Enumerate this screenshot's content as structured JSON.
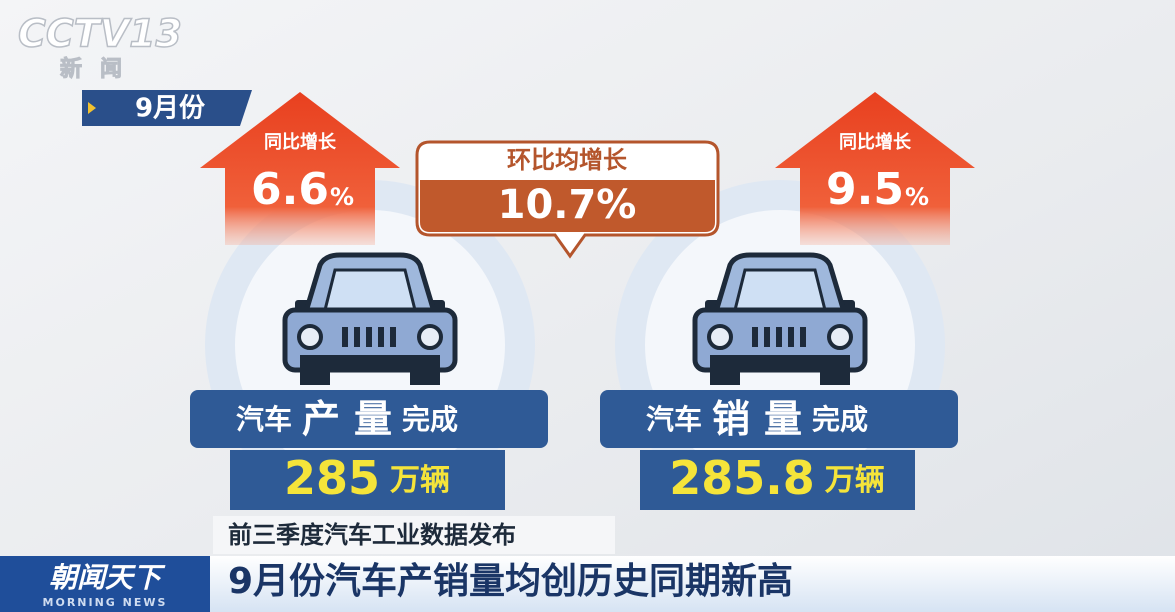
{
  "logo": {
    "channel": "CCTV13",
    "sub": "新闻"
  },
  "month_tag": "9月份",
  "left_arrow": {
    "label": "同比增长",
    "value": 6.6,
    "unit": "%"
  },
  "callout": {
    "label": "环比均增长",
    "value": "10.7%"
  },
  "right_arrow": {
    "label": "同比增长",
    "value": 9.5,
    "unit": "%"
  },
  "production": {
    "prefix": "汽车",
    "key1": "产",
    "key2": "量",
    "suffix": "完成",
    "value": 285,
    "unit": "万辆"
  },
  "sales": {
    "prefix": "汽车",
    "key1": "销",
    "key2": "量",
    "suffix": "完成",
    "value": 285.8,
    "unit": "万辆"
  },
  "subtitle": "前三季度汽车工业数据发布",
  "program": {
    "name": "朝闻天下",
    "english": "MORNING NEWS"
  },
  "headline": "9月份汽车产销量均创历史同期新高"
}
